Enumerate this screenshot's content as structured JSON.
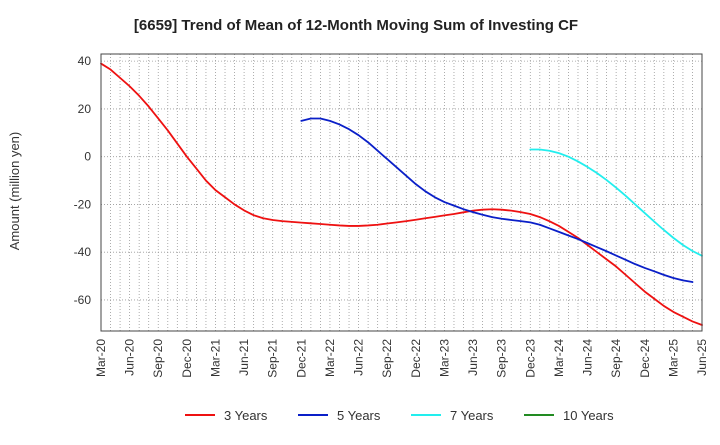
{
  "chart_data": {
    "type": "line",
    "title": "[6659]  Trend of Mean of 12-Month Moving Sum of Investing CF",
    "xlabel": "",
    "ylabel": "Amount (million yen)",
    "ylim": [
      -73,
      43
    ],
    "yticks": [
      40,
      20,
      0,
      -20,
      -40,
      -60
    ],
    "x_tick_labels": [
      "Mar-20",
      "Jun-20",
      "Sep-20",
      "Dec-20",
      "Mar-21",
      "Jun-21",
      "Sep-21",
      "Dec-21",
      "Mar-22",
      "Jun-22",
      "Sep-22",
      "Dec-22",
      "Mar-23",
      "Jun-23",
      "Sep-23",
      "Dec-23",
      "Mar-24",
      "Jun-24",
      "Sep-24",
      "Dec-24",
      "Mar-25",
      "Jun-25"
    ],
    "grid": true,
    "legend_position": "bottom",
    "series": [
      {
        "name": "3 Years",
        "color": "#ee1111",
        "start_month_index": 0,
        "values": [
          39,
          36.5,
          33,
          29.5,
          25.5,
          21,
          16,
          11,
          5.5,
          0,
          -5,
          -10,
          -14,
          -17,
          -20,
          -22.5,
          -24.5,
          -25.8,
          -26.5,
          -27,
          -27.3,
          -27.6,
          -27.9,
          -28.2,
          -28.5,
          -28.8,
          -29,
          -29,
          -28.8,
          -28.5,
          -28,
          -27.5,
          -27,
          -26.4,
          -25.8,
          -25.2,
          -24.6,
          -24,
          -23.3,
          -22.6,
          -22.2,
          -22,
          -22.2,
          -22.6,
          -23.2,
          -24,
          -25.3,
          -27,
          -29,
          -31.5,
          -34,
          -37,
          -40,
          -43,
          -46,
          -49.5,
          -53,
          -56.5,
          -59.5,
          -62.5,
          -65,
          -67,
          -69,
          -70.5
        ]
      },
      {
        "name": "5 Years",
        "color": "#0a1fc8",
        "start_month_index": 21,
        "values": [
          15,
          16,
          16,
          15,
          13.5,
          11.5,
          9,
          6,
          2.5,
          -1,
          -4.5,
          -8,
          -11.5,
          -14.5,
          -17,
          -19,
          -20.5,
          -22,
          -23.2,
          -24.3,
          -25.3,
          -26,
          -26.5,
          -27,
          -27.5,
          -28.5,
          -30,
          -31.5,
          -33,
          -34.5,
          -36.2,
          -37.9,
          -39.6,
          -41.4,
          -43.2,
          -45,
          -46.6,
          -48,
          -49.5,
          -50.8,
          -51.8,
          -52.5
        ]
      },
      {
        "name": "7 Years",
        "color": "#22eeee",
        "start_month_index": 45,
        "values": [
          3,
          3,
          2.5,
          1.5,
          0,
          -2,
          -4.3,
          -6.9,
          -9.8,
          -13,
          -16.4,
          -20,
          -23.6,
          -27.2,
          -30.7,
          -34,
          -37,
          -39.5,
          -41.5
        ]
      },
      {
        "name": "10 Years",
        "color": "#228b22",
        "start_month_index": 0,
        "values": []
      }
    ]
  }
}
